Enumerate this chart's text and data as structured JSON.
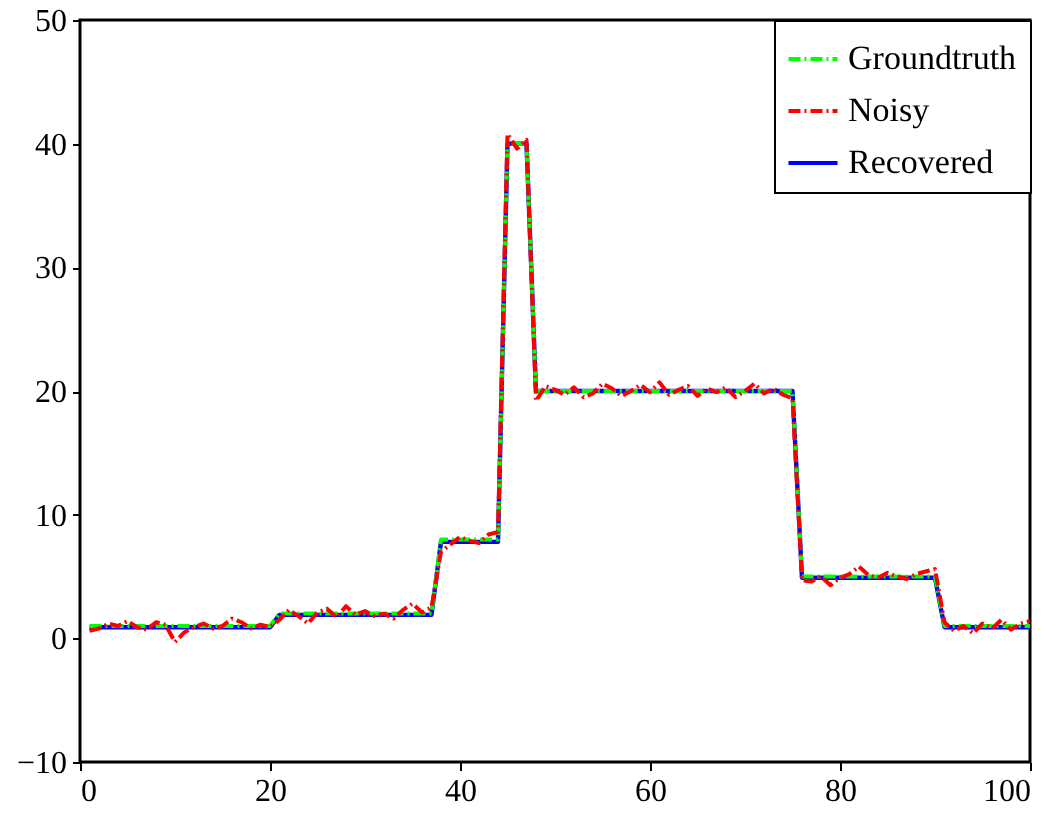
{
  "chart_data": {
    "type": "line",
    "x": [
      1,
      2,
      3,
      4,
      5,
      6,
      7,
      8,
      9,
      10,
      11,
      12,
      13,
      14,
      15,
      16,
      17,
      18,
      19,
      20,
      21,
      22,
      23,
      24,
      25,
      26,
      27,
      28,
      29,
      30,
      31,
      32,
      33,
      34,
      35,
      36,
      37,
      38,
      39,
      40,
      41,
      42,
      43,
      44,
      45,
      46,
      47,
      48,
      49,
      50,
      51,
      52,
      53,
      54,
      55,
      56,
      57,
      58,
      59,
      60,
      61,
      62,
      63,
      64,
      65,
      66,
      67,
      68,
      69,
      70,
      71,
      72,
      73,
      74,
      75,
      76,
      77,
      78,
      79,
      80,
      81,
      82,
      83,
      84,
      85,
      86,
      87,
      88,
      89,
      90,
      91,
      92,
      93,
      94,
      95,
      96,
      97,
      98,
      99,
      100
    ],
    "series": [
      {
        "name": "Groundtruth",
        "color": "#00ff00",
        "line_style": "dashed",
        "values": [
          1,
          1,
          1,
          1,
          1,
          1,
          1,
          1,
          1,
          1,
          1,
          1,
          1,
          1,
          1,
          1,
          1,
          1,
          1,
          1,
          2,
          2,
          2,
          2,
          2,
          2,
          2,
          2,
          2,
          2,
          2,
          2,
          2,
          2,
          2,
          2,
          2,
          8,
          8,
          8,
          8,
          8,
          8,
          8,
          40,
          40,
          40,
          20,
          20,
          20,
          20,
          20,
          20,
          20,
          20,
          20,
          20,
          20,
          20,
          20,
          20,
          20,
          20,
          20,
          20,
          20,
          20,
          20,
          20,
          20,
          20,
          20,
          20,
          20,
          20,
          5,
          5,
          5,
          5,
          5,
          5,
          5,
          5,
          5,
          5,
          5,
          5,
          5,
          5,
          5,
          1,
          1,
          1,
          1,
          1,
          1,
          1,
          1,
          1,
          1
        ]
      },
      {
        "name": "Noisy",
        "color": "#ff0000",
        "line_style": "dashed",
        "values": [
          0.6,
          0.8,
          1.2,
          1.0,
          1.4,
          0.9,
          0.7,
          1.3,
          1.1,
          -0.3,
          0.5,
          0.9,
          1.2,
          0.8,
          1.0,
          1.6,
          1.3,
          0.8,
          1.1,
          0.9,
          1.5,
          2.3,
          1.8,
          1.2,
          2.1,
          2.4,
          1.7,
          2.6,
          1.9,
          2.2,
          1.8,
          2.0,
          1.6,
          2.3,
          2.8,
          2.1,
          2.5,
          7.0,
          7.6,
          8.2,
          7.9,
          7.7,
          8.4,
          8.6,
          40.8,
          39.6,
          40.3,
          19.2,
          20.4,
          20.1,
          19.7,
          20.3,
          19.5,
          19.8,
          20.6,
          20.2,
          19.6,
          20.0,
          20.5,
          19.9,
          20.7,
          19.7,
          20.1,
          20.4,
          19.6,
          20.2,
          19.9,
          20.3,
          19.5,
          20.0,
          20.6,
          19.8,
          20.2,
          19.7,
          19.4,
          4.7,
          4.6,
          5.0,
          4.3,
          4.9,
          5.2,
          5.8,
          5.1,
          4.9,
          5.3,
          5.0,
          4.8,
          5.2,
          5.4,
          5.6,
          1.3,
          0.6,
          1.0,
          0.4,
          1.2,
          0.8,
          1.5,
          0.7,
          1.2,
          1.4
        ]
      },
      {
        "name": "Recovered",
        "color": "#0000ff",
        "line_style": "solid",
        "values": [
          0.9,
          0.9,
          0.9,
          0.9,
          0.9,
          0.9,
          0.9,
          0.9,
          0.9,
          0.9,
          0.9,
          0.9,
          0.9,
          0.9,
          0.9,
          0.9,
          0.9,
          0.9,
          0.9,
          0.9,
          1.9,
          1.9,
          1.9,
          1.9,
          1.9,
          1.9,
          1.9,
          1.9,
          1.9,
          1.9,
          1.9,
          1.9,
          1.9,
          1.9,
          1.9,
          1.9,
          1.9,
          7.8,
          7.8,
          7.8,
          7.8,
          7.8,
          7.8,
          7.8,
          40,
          40,
          40,
          20,
          20,
          20,
          20,
          20,
          20,
          20,
          20,
          20,
          20,
          20,
          20,
          20,
          20,
          20,
          20,
          20,
          20,
          20,
          20,
          20,
          20,
          20,
          20,
          20,
          20,
          20,
          20,
          4.9,
          4.9,
          4.9,
          4.9,
          4.9,
          4.9,
          4.9,
          4.9,
          4.9,
          4.9,
          4.9,
          4.9,
          4.9,
          4.9,
          4.9,
          0.9,
          0.9,
          0.9,
          0.9,
          0.9,
          0.9,
          0.9,
          0.9,
          0.9,
          0.9
        ]
      }
    ],
    "xlim": [
      0,
      100
    ],
    "xticks": [
      0,
      20,
      40,
      60,
      80,
      100
    ],
    "ylim": [
      -10,
      50
    ],
    "yticks": [
      -10,
      0,
      10,
      20,
      30,
      40,
      50
    ],
    "grid": false,
    "legend": "top right"
  }
}
